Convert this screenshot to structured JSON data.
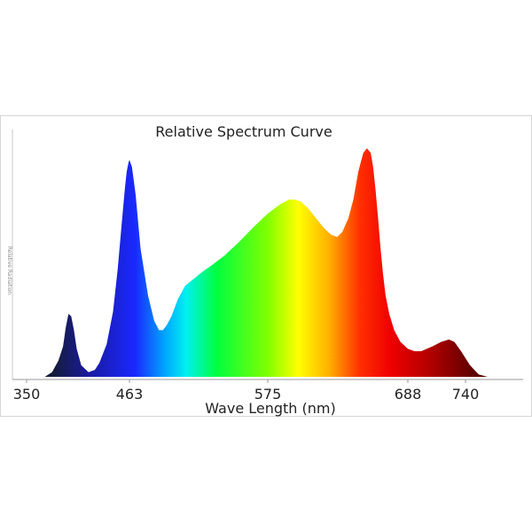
{
  "chart_data": {
    "type": "area",
    "title": "Relative Spectrum Curve",
    "xlabel": "Wave Length (nm)",
    "ylabel": "Relative Radiation",
    "x_ticks": [
      350,
      463,
      575,
      688,
      740
    ],
    "xlim": [
      350,
      770
    ],
    "ylim": [
      0,
      1.0
    ],
    "grid": false,
    "legend": "none",
    "series": [
      {
        "name": "Relative Spectrum",
        "x": [
          370,
          378,
          385,
          390,
          393,
          396,
          399,
          402,
          405,
          410,
          418,
          425,
          430,
          438,
          445,
          450,
          455,
          458,
          460,
          462,
          463,
          465,
          468,
          472,
          478,
          483,
          487,
          490,
          493,
          497,
          502,
          508,
          515,
          522,
          530,
          540,
          552,
          563,
          575,
          585,
          592,
          597,
          602,
          608,
          614,
          620,
          626,
          631,
          635,
          640,
          644,
          648,
          652,
          655,
          658,
          660,
          662,
          664,
          666,
          668,
          670,
          673,
          677,
          682,
          688,
          694,
          700,
          710,
          718,
          725,
          730,
          736,
          744,
          752,
          760
        ],
        "values": [
          0.0,
          0.02,
          0.07,
          0.13,
          0.21,
          0.27,
          0.26,
          0.2,
          0.12,
          0.05,
          0.02,
          0.03,
          0.06,
          0.14,
          0.28,
          0.46,
          0.68,
          0.81,
          0.88,
          0.92,
          0.93,
          0.9,
          0.78,
          0.55,
          0.35,
          0.24,
          0.2,
          0.2,
          0.22,
          0.26,
          0.33,
          0.39,
          0.42,
          0.45,
          0.48,
          0.52,
          0.58,
          0.64,
          0.7,
          0.74,
          0.76,
          0.76,
          0.75,
          0.72,
          0.68,
          0.64,
          0.61,
          0.6,
          0.62,
          0.68,
          0.76,
          0.88,
          0.96,
          0.98,
          0.96,
          0.9,
          0.8,
          0.68,
          0.55,
          0.44,
          0.35,
          0.27,
          0.2,
          0.15,
          0.12,
          0.11,
          0.11,
          0.13,
          0.15,
          0.16,
          0.15,
          0.11,
          0.05,
          0.01,
          0.0
        ]
      }
    ]
  }
}
